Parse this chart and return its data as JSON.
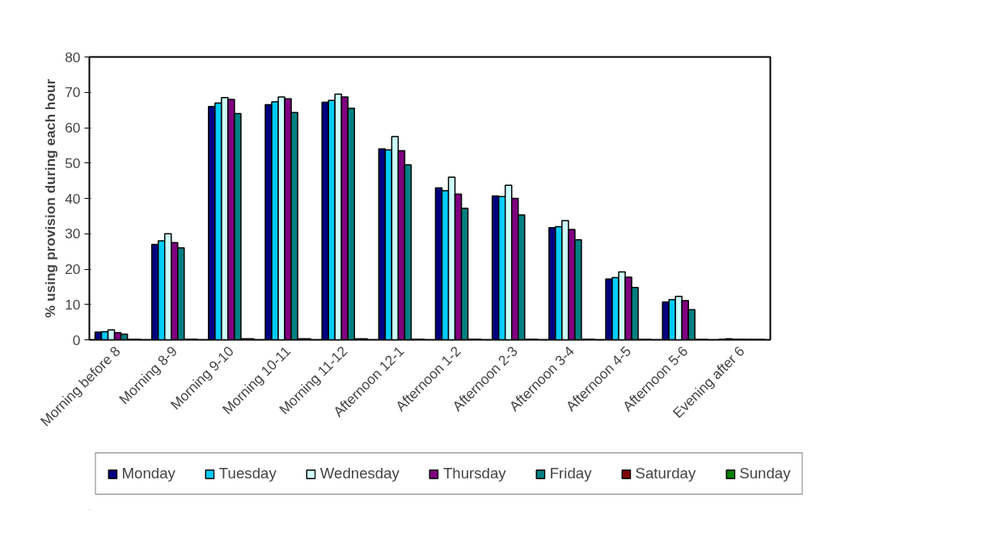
{
  "chart_data": {
    "type": "bar",
    "ylabel": "% using provision during each hour",
    "categories": [
      "Morning before 8",
      "Morning 8-9",
      "Morning 9-10",
      "Morning 10-11",
      "Morning 11-12",
      "Afternoon 12-1",
      "Afternoon 1-2",
      "Afternoon 2-3",
      "Afternoon 3-4",
      "Afternoon 4-5",
      "Afternoon 5-6",
      "Evening after 6"
    ],
    "series": [
      {
        "name": "Monday",
        "color": "#000080",
        "values": [
          2.2,
          27,
          66,
          66.5,
          67.2,
          54,
          43,
          40.7,
          31.7,
          17.2,
          10.7,
          0.2
        ]
      },
      {
        "name": "Tuesday",
        "color": "#00ccff",
        "values": [
          2.3,
          28,
          67,
          67.3,
          67.7,
          53.7,
          42.2,
          40.5,
          32,
          17.6,
          11.4,
          0.3
        ]
      },
      {
        "name": "Wednesday",
        "color": "#ccffff",
        "values": [
          2.8,
          30,
          68.5,
          68.7,
          69.5,
          57.5,
          46,
          43.7,
          33.7,
          19.2,
          12.3,
          0.2
        ]
      },
      {
        "name": "Thursday",
        "color": "#800080",
        "values": [
          2,
          27.5,
          68,
          68.2,
          68.7,
          53.5,
          41.2,
          40,
          31.2,
          17.7,
          11.1,
          0.2
        ]
      },
      {
        "name": "Friday",
        "color": "#008080",
        "values": [
          1.6,
          26,
          64,
          64.3,
          65.5,
          49.5,
          37.2,
          35.3,
          28.3,
          14.8,
          8.5,
          0.1
        ]
      },
      {
        "name": "Saturday",
        "color": "#800000",
        "values": [
          0.1,
          0.2,
          0.3,
          0.3,
          0.3,
          0.2,
          0.2,
          0.2,
          0.2,
          0.1,
          0.1,
          0.1
        ]
      },
      {
        "name": "Sunday",
        "color": "#008000",
        "values": [
          0.1,
          0.2,
          0.3,
          0.3,
          0.3,
          0.2,
          0.2,
          0.2,
          0.2,
          0.1,
          0.1,
          0.1
        ]
      }
    ],
    "ylim": [
      0,
      80
    ],
    "yticks": [
      0,
      10,
      20,
      30,
      40,
      50,
      60,
      70,
      80
    ],
    "grid": false,
    "legend": "bottom"
  }
}
